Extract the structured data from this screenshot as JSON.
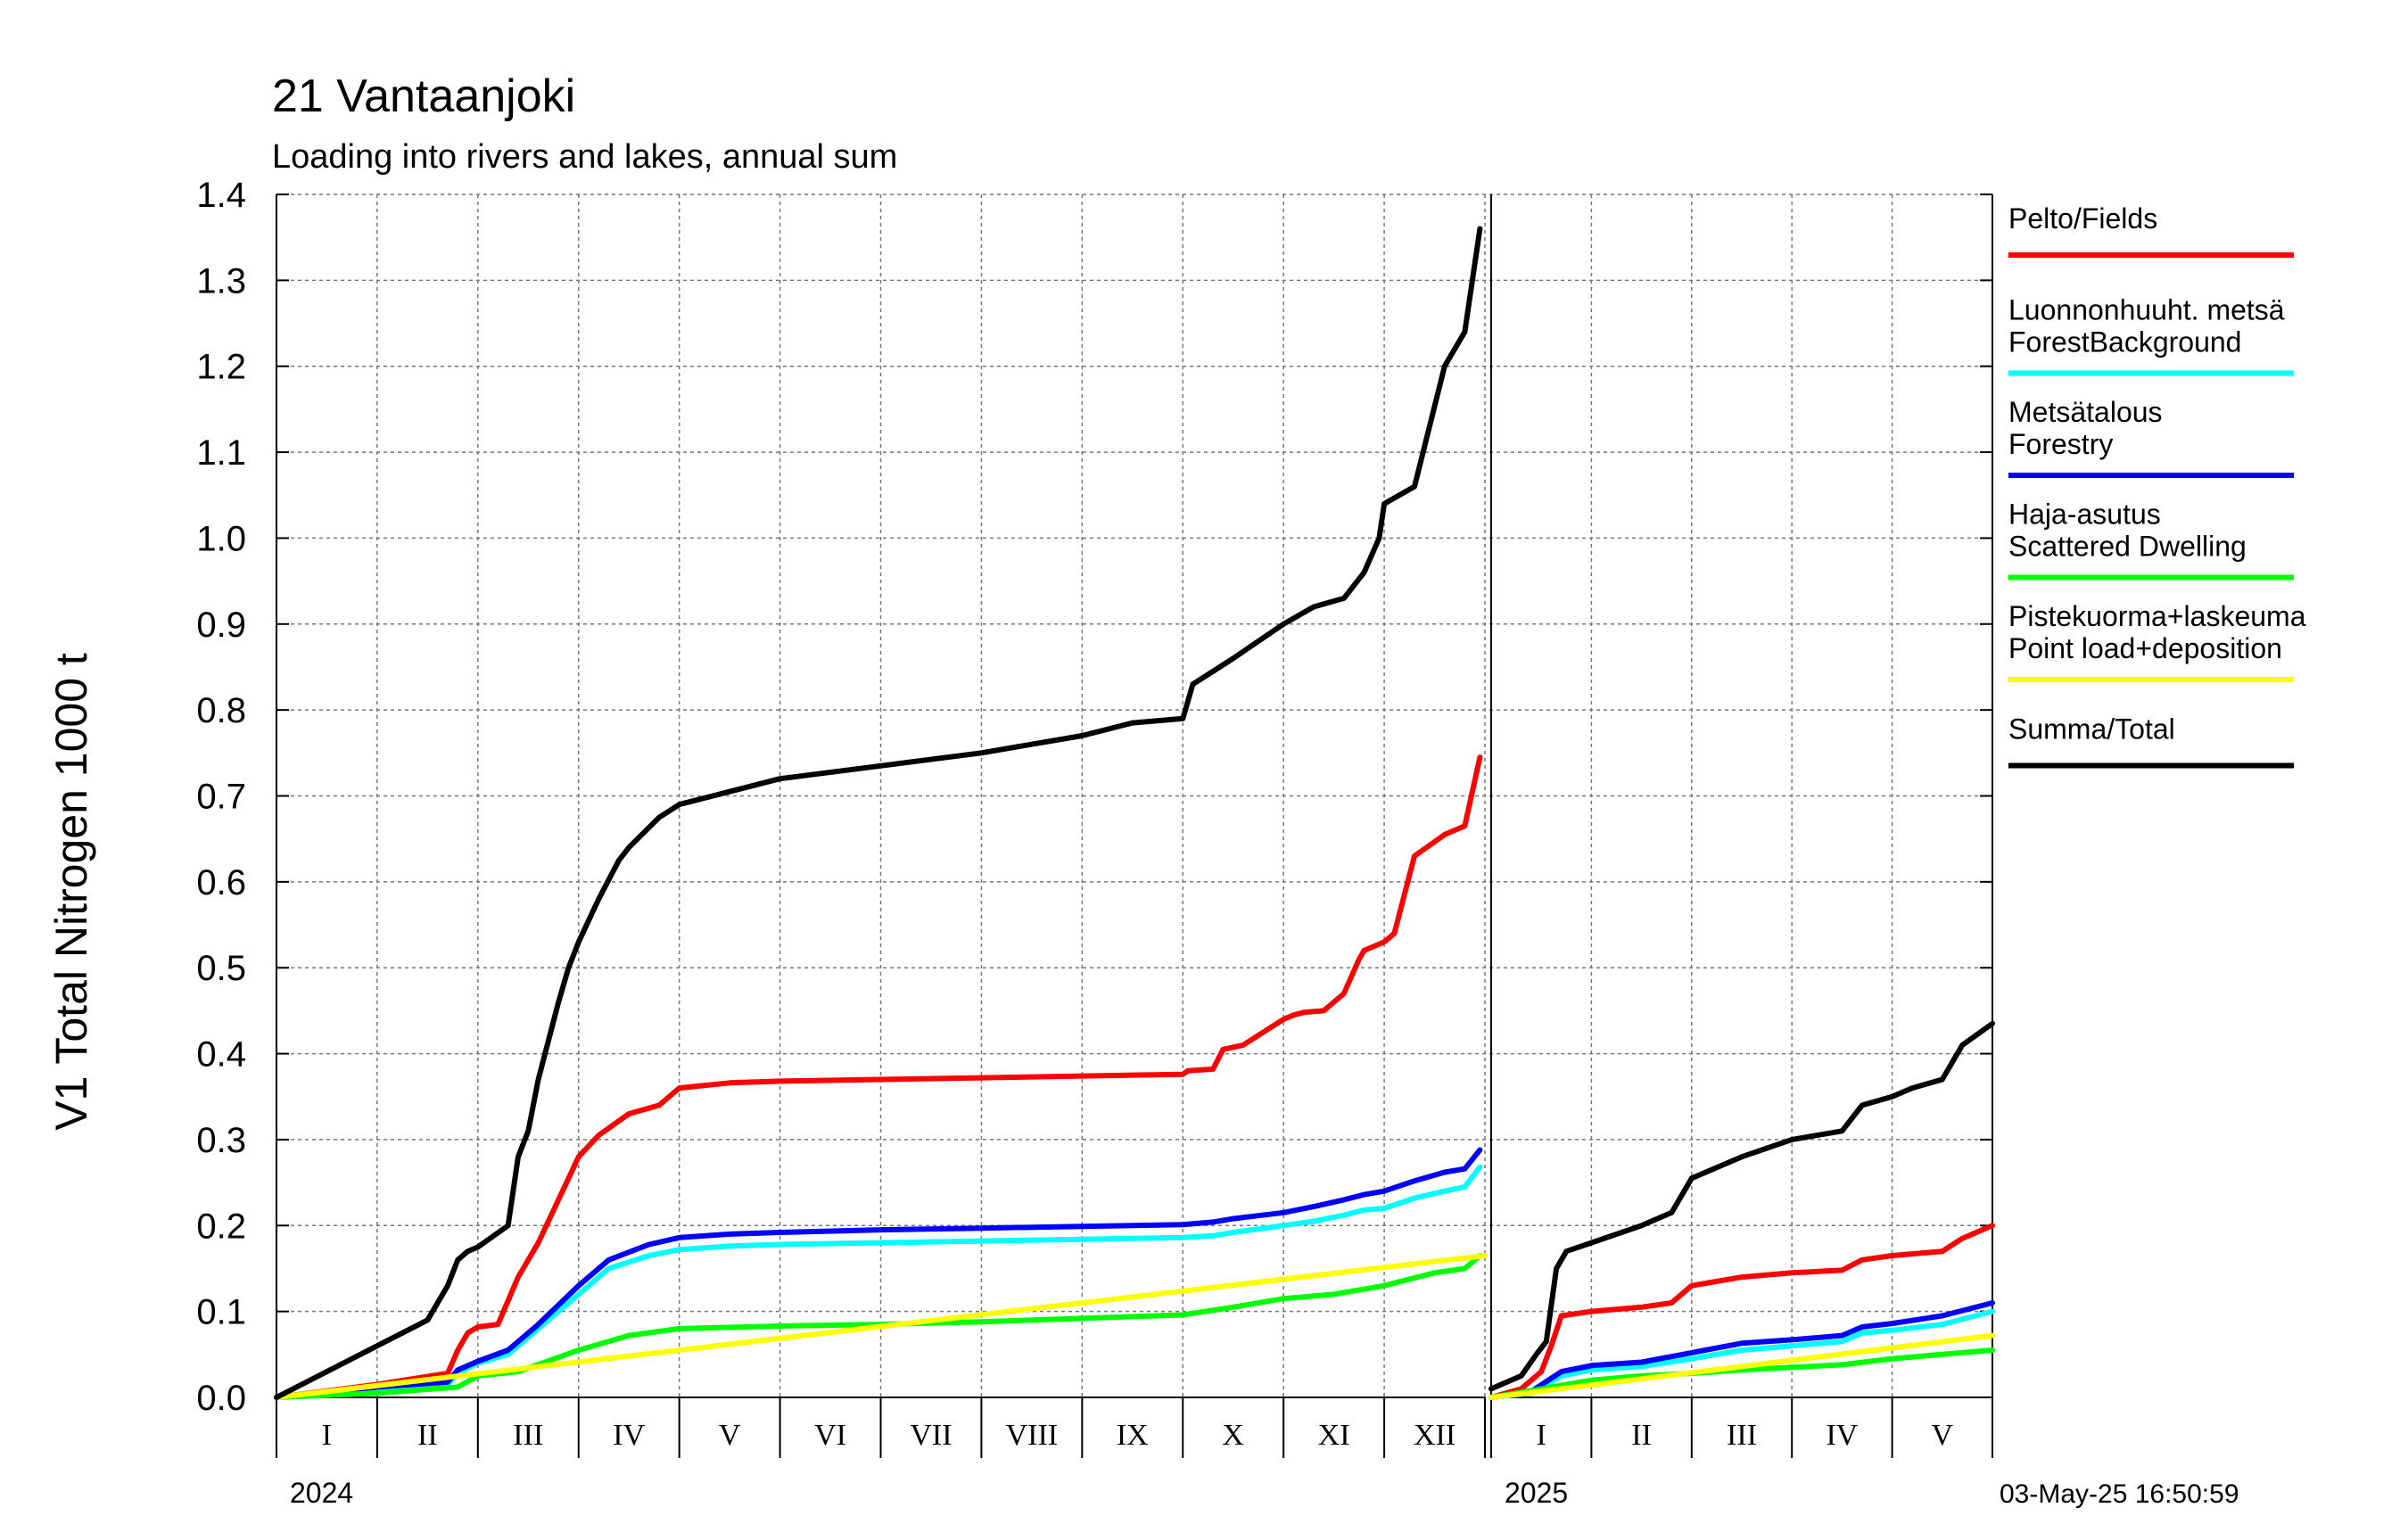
{
  "chart_data": {
    "type": "line",
    "title": "21 Vantaanjoki",
    "subtitle": "Loading into rivers and lakes, annual sum",
    "ylabel": "V1 Total Nitrogen 1000 t",
    "ylim": [
      0.0,
      1.4
    ],
    "yticks": [
      "0.0",
      "0.1",
      "0.2",
      "0.3",
      "0.4",
      "0.5",
      "0.6",
      "0.7",
      "0.8",
      "0.9",
      "1.0",
      "1.1",
      "1.2",
      "1.3",
      "1.4"
    ],
    "grid": true,
    "legend_position": "right",
    "timestamp": "03-May-25 16:50:59",
    "panels": [
      {
        "year": "2024",
        "months": [
          "I",
          "II",
          "III",
          "IV",
          "V",
          "VI",
          "VII",
          "VIII",
          "IX",
          "X",
          "XI",
          "XII"
        ],
        "xlim": [
          0,
          12
        ],
        "series": [
          {
            "name": "Pelto/Fields",
            "color": "#ff0000",
            "x": [
              0,
              1,
              1.7,
              1.8,
              1.9,
              2,
              2.2,
              2.4,
              2.6,
              2.8,
              3,
              3.2,
              3.5,
              3.8,
              4,
              4.5,
              5,
              6,
              7,
              8,
              9,
              9.05,
              9.3,
              9.4,
              9.6,
              10,
              10.1,
              10.2,
              10.4,
              10.6,
              10.75,
              10.8,
              11,
              11.1,
              11.3,
              11.6,
              11.8,
              11.95
            ],
            "values": [
              0,
              0.015,
              0.028,
              0.055,
              0.075,
              0.082,
              0.085,
              0.14,
              0.18,
              0.23,
              0.28,
              0.305,
              0.33,
              0.34,
              0.36,
              0.366,
              0.368,
              0.37,
              0.372,
              0.374,
              0.376,
              0.38,
              0.382,
              0.405,
              0.41,
              0.44,
              0.445,
              0.448,
              0.45,
              0.47,
              0.51,
              0.52,
              0.53,
              0.54,
              0.63,
              0.655,
              0.665,
              0.745
            ]
          },
          {
            "name": "Luonnonhuuht. metsä ForestBackground",
            "color": "#00ffff",
            "x": [
              0,
              1,
              1.7,
              1.8,
              2,
              2.3,
              2.6,
              3,
              3.3,
              3.7,
              4,
              4.5,
              5,
              6,
              7,
              8,
              9,
              9.3,
              9.5,
              10,
              10.3,
              10.6,
              10.8,
              11,
              11.3,
              11.6,
              11.8,
              11.95
            ],
            "values": [
              0,
              0.01,
              0.015,
              0.028,
              0.04,
              0.05,
              0.08,
              0.12,
              0.15,
              0.165,
              0.172,
              0.176,
              0.178,
              0.18,
              0.182,
              0.184,
              0.186,
              0.188,
              0.192,
              0.2,
              0.205,
              0.212,
              0.218,
              0.22,
              0.232,
              0.24,
              0.245,
              0.268
            ]
          },
          {
            "name": "Metsätalous Forestry",
            "color": "#0000ff",
            "x": [
              0,
              1,
              1.7,
              1.8,
              2,
              2.3,
              2.6,
              3,
              3.3,
              3.7,
              4,
              4.5,
              5,
              6,
              7,
              8,
              9,
              9.3,
              9.5,
              10,
              10.3,
              10.6,
              10.8,
              11,
              11.3,
              11.6,
              11.8,
              11.95
            ],
            "values": [
              0,
              0.012,
              0.018,
              0.032,
              0.042,
              0.055,
              0.085,
              0.13,
              0.16,
              0.178,
              0.186,
              0.19,
              0.192,
              0.195,
              0.197,
              0.199,
              0.201,
              0.204,
              0.208,
              0.215,
              0.222,
              0.23,
              0.236,
              0.24,
              0.252,
              0.262,
              0.266,
              0.288
            ]
          },
          {
            "name": "Haja-asutus Scattered Dwelling",
            "color": "#00ff00",
            "x": [
              0,
              1,
              1.8,
              2,
              2.4,
              3,
              3.5,
              4,
              5,
              6,
              7,
              8,
              8.5,
              9,
              9.5,
              10,
              10.5,
              11,
              11.5,
              11.8,
              11.95
            ],
            "values": [
              0,
              0.005,
              0.012,
              0.025,
              0.03,
              0.055,
              0.072,
              0.08,
              0.083,
              0.085,
              0.088,
              0.092,
              0.094,
              0.096,
              0.105,
              0.115,
              0.12,
              0.13,
              0.145,
              0.15,
              0.165
            ]
          },
          {
            "name": "Pistekuorma+laskeuma Point load+deposition",
            "color": "#ffff00",
            "x": [
              0,
              12
            ],
            "values": [
              0,
              0.165
            ]
          },
          {
            "name": "Summa/Total",
            "color": "#000000",
            "x": [
              0,
              0.5,
              1,
              1.5,
              1.7,
              1.8,
              1.9,
              2,
              2.3,
              2.4,
              2.5,
              2.6,
              2.8,
              2.9,
              3,
              3.2,
              3.4,
              3.5,
              3.8,
              4,
              4.5,
              5,
              6,
              7,
              8,
              8.5,
              9,
              9.1,
              9.3,
              9.5,
              10,
              10.3,
              10.6,
              10.8,
              10.95,
              11,
              11.3,
              11.6,
              11.8,
              11.95
            ],
            "values": [
              0,
              0.03,
              0.06,
              0.09,
              0.13,
              0.16,
              0.17,
              0.175,
              0.2,
              0.28,
              0.31,
              0.37,
              0.46,
              0.5,
              0.53,
              0.58,
              0.625,
              0.64,
              0.675,
              0.69,
              0.705,
              0.72,
              0.735,
              0.75,
              0.77,
              0.785,
              0.79,
              0.83,
              0.845,
              0.86,
              0.9,
              0.92,
              0.93,
              0.96,
              1.0,
              1.04,
              1.06,
              1.2,
              1.24,
              1.36
            ]
          }
        ]
      },
      {
        "year": "2025",
        "months": [
          "I",
          "II",
          "III",
          "IV",
          "V"
        ],
        "xlim": [
          0,
          5
        ],
        "series": [
          {
            "name": "Pelto/Fields",
            "color": "#ff0000",
            "x": [
              0,
              0.3,
              0.5,
              0.6,
              0.7,
              1,
              1.5,
              1.8,
              2,
              2.5,
              3,
              3.5,
              3.7,
              4,
              4.5,
              4.7,
              5
            ],
            "values": [
              0,
              0.01,
              0.03,
              0.06,
              0.095,
              0.1,
              0.105,
              0.11,
              0.13,
              0.14,
              0.145,
              0.148,
              0.16,
              0.165,
              0.17,
              0.185,
              0.2
            ]
          },
          {
            "name": "Luonnonhuuht. metsä ForestBackground",
            "color": "#00ffff",
            "x": [
              0,
              0.4,
              0.7,
              1,
              1.5,
              2,
              2.5,
              3,
              3.5,
              3.7,
              4,
              4.5,
              5
            ],
            "values": [
              0,
              0.005,
              0.025,
              0.032,
              0.036,
              0.045,
              0.055,
              0.06,
              0.065,
              0.075,
              0.078,
              0.085,
              0.1
            ]
          },
          {
            "name": "Metsätalous Forestry",
            "color": "#0000ff",
            "x": [
              0,
              0.4,
              0.7,
              1,
              1.5,
              2,
              2.5,
              3,
              3.5,
              3.7,
              4,
              4.5,
              5
            ],
            "values": [
              0,
              0.007,
              0.03,
              0.037,
              0.041,
              0.052,
              0.063,
              0.067,
              0.072,
              0.082,
              0.086,
              0.095,
              0.11
            ]
          },
          {
            "name": "Haja-asutus Scattered Dwelling",
            "color": "#00ff00",
            "x": [
              0,
              0.5,
              1,
              1.5,
              2,
              2.5,
              3,
              3.5,
              4,
              4.5,
              5
            ],
            "values": [
              0,
              0.01,
              0.02,
              0.025,
              0.028,
              0.032,
              0.035,
              0.038,
              0.045,
              0.05,
              0.055
            ]
          },
          {
            "name": "Pistekuorma+laskeuma Point load+deposition",
            "color": "#ffff00",
            "x": [
              0,
              5
            ],
            "values": [
              0,
              0.072
            ]
          },
          {
            "name": "Summa/Total",
            "color": "#000000",
            "x": [
              0,
              0.3,
              0.45,
              0.55,
              0.65,
              0.75,
              1,
              1.5,
              1.8,
              2,
              2.5,
              3,
              3.5,
              3.7,
              4,
              4.2,
              4.5,
              4.7,
              5
            ],
            "values": [
              0.01,
              0.025,
              0.05,
              0.065,
              0.15,
              0.17,
              0.18,
              0.2,
              0.215,
              0.255,
              0.28,
              0.3,
              0.31,
              0.34,
              0.35,
              0.36,
              0.37,
              0.41,
              0.435
            ]
          }
        ]
      }
    ],
    "legend": [
      {
        "line1": "Pelto/Fields",
        "line2": "",
        "color": "#ff0000"
      },
      {
        "line1": "Luonnonhuuht. metsä",
        "line2": "ForestBackground",
        "color": "#00ffff"
      },
      {
        "line1": "Metsätalous",
        "line2": "Forestry",
        "color": "#0000ff"
      },
      {
        "line1": "Haja-asutus",
        "line2": "Scattered Dwelling",
        "color": "#00ff00"
      },
      {
        "line1": "Pistekuorma+laskeuma",
        "line2": "Point load+deposition",
        "color": "#ffff00"
      },
      {
        "line1": "Summa/Total",
        "line2": "",
        "color": "#000000"
      }
    ]
  }
}
